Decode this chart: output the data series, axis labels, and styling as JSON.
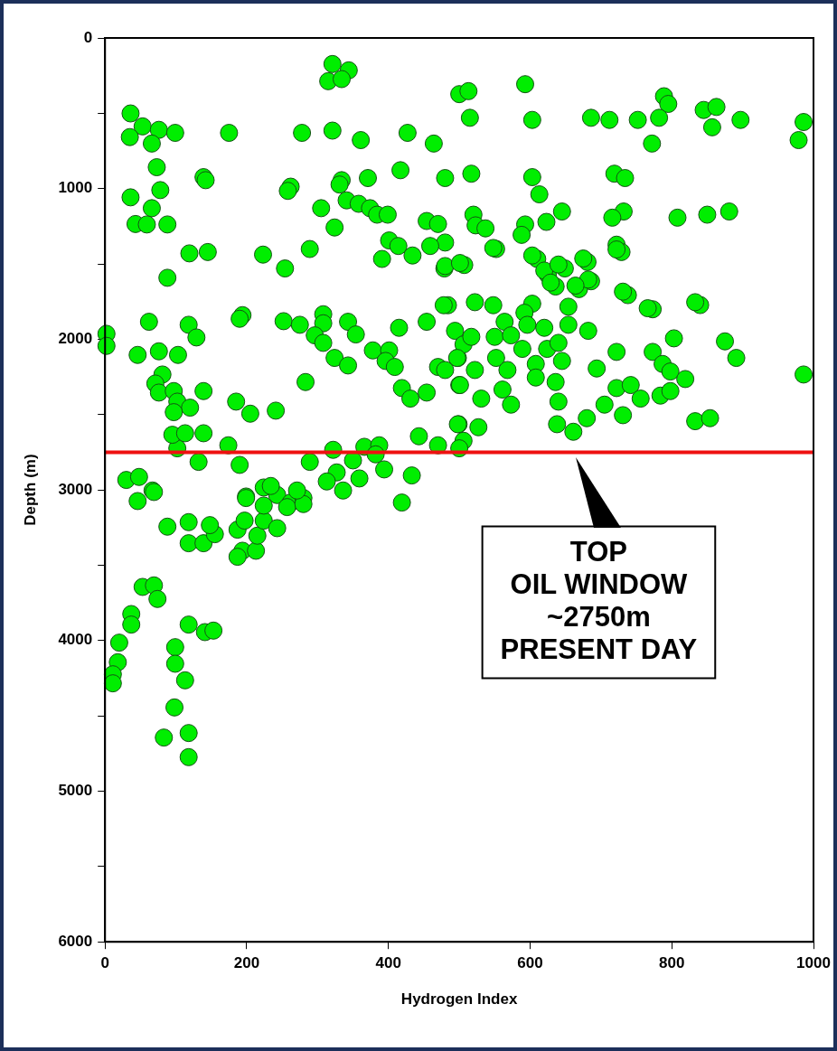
{
  "chart_data": {
    "type": "scatter",
    "xlabel": "Hydrogen Index",
    "ylabel": "Depth (m)",
    "color": "#00ee00",
    "marker": "circle",
    "xlim": [
      0,
      1000
    ],
    "xticks": [
      0,
      200,
      400,
      600,
      800,
      1000
    ],
    "ylim": [
      6000,
      0
    ],
    "yticks": [
      0,
      {
        "value": 500,
        "label": null
      },
      1000,
      {
        "value": 1500,
        "label": null
      },
      2000,
      {
        "value": 2500,
        "label": null
      },
      3000,
      {
        "value": 3500,
        "label": null
      },
      4000,
      {
        "value": 4500,
        "label": null
      },
      5000,
      {
        "value": 5500,
        "label": null
      },
      6000
    ],
    "ref_lines": [
      {
        "axis": "y",
        "value": 2750,
        "color": "#ee1111"
      }
    ],
    "annotations": [
      {
        "text": "TOP\nOIL WINDOW\n~2750m\nPRESENT DAY",
        "x": 665,
        "y": 2750
      }
    ],
    "x": [
      321,
      344,
      315,
      334,
      36,
      53,
      76,
      35,
      66,
      99,
      175,
      278,
      321,
      361,
      427,
      464,
      500,
      513,
      593,
      515,
      603,
      686,
      712,
      752,
      789,
      795,
      782,
      772,
      845,
      863,
      857,
      897,
      986,
      979,
      73,
      139,
      142,
      78,
      36,
      66,
      43,
      59,
      88,
      262,
      258,
      334,
      331,
      371,
      417,
      480,
      517,
      603,
      613,
      719,
      734,
      305,
      324,
      341,
      358,
      374,
      384,
      399,
      454,
      470,
      520,
      523,
      537,
      480,
      459,
      401,
      414,
      552,
      434,
      391,
      645,
      623,
      593,
      588,
      732,
      716,
      808,
      850,
      881,
      722,
      729,
      119,
      145,
      223,
      254,
      289,
      88,
      479,
      507,
      610,
      625,
      636,
      681,
      686,
      669,
      738,
      840,
      773,
      649,
      2,
      2,
      62,
      118,
      129,
      194,
      190,
      46,
      76,
      103,
      252,
      275,
      308,
      308,
      296,
      308,
      343,
      354,
      324,
      343,
      283,
      81,
      71,
      76,
      97,
      102,
      120,
      97,
      139,
      185,
      205,
      241,
      378,
      401,
      415,
      396,
      409,
      419,
      431,
      454,
      454,
      470,
      484,
      498,
      500,
      480,
      501,
      548,
      603,
      620,
      640,
      675,
      682,
      664,
      722,
      629,
      731,
      766,
      833,
      478,
      522,
      548,
      564,
      603,
      592,
      654,
      654,
      682,
      620,
      596,
      494,
      506,
      517,
      550,
      573,
      589,
      624,
      640,
      497,
      480,
      501,
      522,
      552,
      568,
      561,
      531,
      573,
      608,
      608,
      636,
      645,
      640,
      722,
      694,
      773,
      803,
      787,
      798,
      819,
      875,
      891,
      722,
      742,
      756,
      705,
      731,
      784,
      798,
      680,
      638,
      661,
      833,
      854,
      986,
      499,
      527,
      506,
      102,
      95,
      113,
      139,
      132,
      174,
      190,
      289,
      322,
      327,
      350,
      366,
      387,
      382,
      394,
      359,
      336,
      313,
      433,
      443,
      470,
      498,
      500,
      419,
      30,
      48,
      67,
      46,
      199,
      224,
      243,
      262,
      280,
      88,
      118,
      118,
      139,
      155,
      148,
      187,
      197,
      194,
      187,
      213,
      215,
      224,
      243,
      224,
      257,
      280,
      199,
      234,
      271,
      53,
      69,
      74,
      37,
      37,
      20,
      18,
      11,
      11,
      118,
      141,
      153,
      99,
      99,
      113,
      98,
      83,
      118,
      118,
      69
    ],
    "values": [
      173,
      215,
      287,
      273,
      501,
      587,
      610,
      658,
      701,
      630,
      630,
      630,
      615,
      678,
      630,
      701,
      373,
      353,
      307,
      530,
      544,
      530,
      544,
      544,
      387,
      438,
      530,
      701,
      478,
      458,
      593,
      544,
      558,
      678,
      858,
      924,
      944,
      1010,
      1058,
      1130,
      1235,
      1238,
      1238,
      987,
      1015,
      944,
      973,
      930,
      878,
      930,
      901,
      924,
      1038,
      901,
      930,
      1130,
      1258,
      1078,
      1101,
      1130,
      1173,
      1173,
      1215,
      1235,
      1173,
      1244,
      1264,
      1358,
      1381,
      1344,
      1381,
      1401,
      1444,
      1467,
      1152,
      1221,
      1238,
      1307,
      1152,
      1193,
      1193,
      1173,
      1152,
      1372,
      1421,
      1430,
      1421,
      1438,
      1530,
      1401,
      1592,
      1530,
      1507,
      1467,
      1573,
      1650,
      1487,
      1615,
      1667,
      1707,
      1773,
      1801,
      1530,
      1964,
      2044,
      1884,
      1904,
      1988,
      1840,
      1864,
      2104,
      2080,
      2104,
      1880,
      1904,
      1834,
      1894,
      1974,
      2024,
      1884,
      1968,
      2124,
      2174,
      2284,
      2234,
      2294,
      2354,
      2344,
      2414,
      2454,
      2484,
      2344,
      2414,
      2494,
      2474,
      2074,
      2074,
      1924,
      2144,
      2184,
      2324,
      2394,
      2354,
      1884,
      2184,
      1774,
      2124,
      2304,
      1514,
      1494,
      1394,
      1444,
      1544,
      1504,
      1464,
      1604,
      1644,
      1404,
      1624,
      1684,
      1794,
      1754,
      1774,
      1754,
      1774,
      1884,
      1764,
      1824,
      1784,
      1904,
      1944,
      1924,
      1904,
      1944,
      2034,
      1984,
      1984,
      1974,
      2064,
      2064,
      2024,
      2124,
      2204,
      2304,
      2204,
      2124,
      2204,
      2334,
      2394,
      2434,
      2164,
      2254,
      2284,
      2144,
      2414,
      2084,
      2194,
      2084,
      1994,
      2164,
      2214,
      2264,
      2014,
      2124,
      2324,
      2304,
      2394,
      2434,
      2504,
      2374,
      2344,
      2524,
      2564,
      2614,
      2544,
      2524,
      2234,
      2564,
      2584,
      2674,
      2724,
      2634,
      2624,
      2624,
      2814,
      2704,
      2834,
      2814,
      2734,
      2884,
      2804,
      2714,
      2704,
      2764,
      2864,
      2924,
      3004,
      2944,
      2904,
      2644,
      2704,
      2564,
      2724,
      3084,
      2934,
      2914,
      3004,
      3074,
      3044,
      2984,
      3034,
      3084,
      3054,
      3244,
      3214,
      3354,
      3354,
      3294,
      3234,
      3264,
      3204,
      3404,
      3444,
      3404,
      3304,
      3204,
      3254,
      3104,
      3114,
      3094,
      3054,
      2974,
      3004,
      3644,
      3634,
      3724,
      3824,
      3894,
      4014,
      4144,
      4224,
      4284,
      3894,
      3944,
      3934,
      4044,
      4154,
      4264,
      4444,
      4644,
      4614,
      4774,
      3014
    ]
  }
}
